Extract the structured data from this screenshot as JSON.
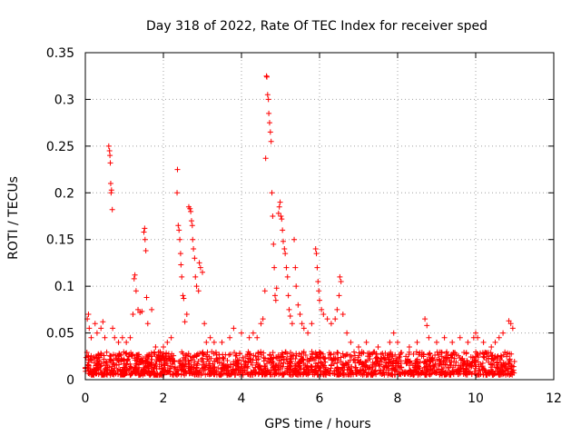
{
  "chart_data": {
    "type": "scatter",
    "title": "Day 318 of 2022, Rate Of TEC Index for receiver sped",
    "xlabel": "GPS time / hours",
    "ylabel": "ROTI / TECUs",
    "xlim": [
      0,
      12
    ],
    "ylim": [
      0,
      0.35
    ],
    "xticks": [
      0,
      2,
      4,
      6,
      8,
      10,
      12
    ],
    "xtick_labels": [
      "0",
      "2",
      "4",
      "6",
      "8",
      "10",
      "12"
    ],
    "yticks": [
      0,
      0.05,
      0.1,
      0.15,
      0.2,
      0.25,
      0.3,
      0.35
    ],
    "ytick_labels": [
      "0",
      "0.05",
      "0.1",
      "0.15",
      "0.2",
      "0.25",
      "0.3",
      "0.35"
    ],
    "grid": true,
    "marker": "+",
    "color": "#ff0000",
    "series": [
      {
        "name": "ROTI",
        "background_band": {
          "x_range": [
            0,
            11
          ],
          "y_range": [
            0.005,
            0.03
          ]
        },
        "points": [
          [
            0.05,
            0.065
          ],
          [
            0.08,
            0.07
          ],
          [
            0.1,
            0.055
          ],
          [
            0.15,
            0.045
          ],
          [
            0.25,
            0.06
          ],
          [
            0.3,
            0.05
          ],
          [
            0.4,
            0.055
          ],
          [
            0.45,
            0.062
          ],
          [
            0.5,
            0.045
          ],
          [
            0.6,
            0.25
          ],
          [
            0.62,
            0.245
          ],
          [
            0.63,
            0.24
          ],
          [
            0.64,
            0.232
          ],
          [
            0.65,
            0.21
          ],
          [
            0.66,
            0.2
          ],
          [
            0.67,
            0.203
          ],
          [
            0.69,
            0.182
          ],
          [
            0.7,
            0.055
          ],
          [
            0.75,
            0.045
          ],
          [
            0.85,
            0.04
          ],
          [
            0.95,
            0.045
          ],
          [
            1.05,
            0.04
          ],
          [
            1.15,
            0.045
          ],
          [
            1.22,
            0.07
          ],
          [
            1.25,
            0.108
          ],
          [
            1.27,
            0.112
          ],
          [
            1.3,
            0.095
          ],
          [
            1.35,
            0.075
          ],
          [
            1.4,
            0.072
          ],
          [
            1.45,
            0.073
          ],
          [
            1.5,
            0.158
          ],
          [
            1.52,
            0.162
          ],
          [
            1.53,
            0.15
          ],
          [
            1.55,
            0.138
          ],
          [
            1.57,
            0.088
          ],
          [
            1.6,
            0.06
          ],
          [
            1.7,
            0.075
          ],
          [
            1.8,
            0.035
          ],
          [
            2.0,
            0.035
          ],
          [
            2.1,
            0.04
          ],
          [
            2.2,
            0.045
          ],
          [
            2.35,
            0.2
          ],
          [
            2.36,
            0.225
          ],
          [
            2.38,
            0.165
          ],
          [
            2.4,
            0.16
          ],
          [
            2.42,
            0.15
          ],
          [
            2.44,
            0.135
          ],
          [
            2.45,
            0.123
          ],
          [
            2.47,
            0.11
          ],
          [
            2.5,
            0.09
          ],
          [
            2.52,
            0.087
          ],
          [
            2.55,
            0.062
          ],
          [
            2.6,
            0.07
          ],
          [
            2.65,
            0.185
          ],
          [
            2.68,
            0.183
          ],
          [
            2.7,
            0.18
          ],
          [
            2.72,
            0.17
          ],
          [
            2.74,
            0.165
          ],
          [
            2.75,
            0.15
          ],
          [
            2.77,
            0.14
          ],
          [
            2.8,
            0.13
          ],
          [
            2.82,
            0.11
          ],
          [
            2.85,
            0.1
          ],
          [
            2.9,
            0.095
          ],
          [
            2.92,
            0.125
          ],
          [
            2.95,
            0.12
          ],
          [
            3.0,
            0.115
          ],
          [
            3.05,
            0.06
          ],
          [
            3.1,
            0.04
          ],
          [
            3.2,
            0.045
          ],
          [
            3.3,
            0.04
          ],
          [
            3.5,
            0.04
          ],
          [
            3.7,
            0.045
          ],
          [
            3.8,
            0.055
          ],
          [
            4.0,
            0.05
          ],
          [
            4.2,
            0.045
          ],
          [
            4.3,
            0.05
          ],
          [
            4.4,
            0.045
          ],
          [
            4.5,
            0.06
          ],
          [
            4.55,
            0.065
          ],
          [
            4.6,
            0.095
          ],
          [
            4.62,
            0.237
          ],
          [
            4.64,
            0.325
          ],
          [
            4.65,
            0.324
          ],
          [
            4.67,
            0.305
          ],
          [
            4.69,
            0.3
          ],
          [
            4.7,
            0.285
          ],
          [
            4.72,
            0.275
          ],
          [
            4.74,
            0.265
          ],
          [
            4.76,
            0.255
          ],
          [
            4.78,
            0.2
          ],
          [
            4.8,
            0.175
          ],
          [
            4.82,
            0.145
          ],
          [
            4.84,
            0.12
          ],
          [
            4.86,
            0.09
          ],
          [
            4.88,
            0.085
          ],
          [
            4.9,
            0.098
          ],
          [
            4.95,
            0.178
          ],
          [
            4.97,
            0.185
          ],
          [
            4.99,
            0.19
          ],
          [
            5.01,
            0.175
          ],
          [
            5.03,
            0.172
          ],
          [
            5.05,
            0.16
          ],
          [
            5.07,
            0.148
          ],
          [
            5.1,
            0.14
          ],
          [
            5.12,
            0.135
          ],
          [
            5.15,
            0.12
          ],
          [
            5.18,
            0.11
          ],
          [
            5.2,
            0.09
          ],
          [
            5.22,
            0.075
          ],
          [
            5.25,
            0.068
          ],
          [
            5.3,
            0.06
          ],
          [
            5.35,
            0.15
          ],
          [
            5.38,
            0.12
          ],
          [
            5.4,
            0.1
          ],
          [
            5.45,
            0.08
          ],
          [
            5.5,
            0.07
          ],
          [
            5.55,
            0.06
          ],
          [
            5.6,
            0.055
          ],
          [
            5.7,
            0.05
          ],
          [
            5.8,
            0.06
          ],
          [
            5.9,
            0.14
          ],
          [
            5.92,
            0.135
          ],
          [
            5.94,
            0.12
          ],
          [
            5.96,
            0.105
          ],
          [
            5.98,
            0.095
          ],
          [
            6.0,
            0.085
          ],
          [
            6.05,
            0.075
          ],
          [
            6.1,
            0.07
          ],
          [
            6.2,
            0.065
          ],
          [
            6.3,
            0.06
          ],
          [
            6.4,
            0.065
          ],
          [
            6.45,
            0.075
          ],
          [
            6.5,
            0.09
          ],
          [
            6.52,
            0.11
          ],
          [
            6.55,
            0.105
          ],
          [
            6.6,
            0.07
          ],
          [
            6.7,
            0.05
          ],
          [
            6.8,
            0.04
          ],
          [
            7.0,
            0.035
          ],
          [
            7.2,
            0.04
          ],
          [
            7.5,
            0.035
          ],
          [
            7.8,
            0.04
          ],
          [
            7.9,
            0.05
          ],
          [
            8.0,
            0.04
          ],
          [
            8.3,
            0.035
          ],
          [
            8.5,
            0.04
          ],
          [
            8.7,
            0.065
          ],
          [
            8.75,
            0.058
          ],
          [
            8.8,
            0.045
          ],
          [
            9.0,
            0.04
          ],
          [
            9.2,
            0.045
          ],
          [
            9.4,
            0.04
          ],
          [
            9.6,
            0.045
          ],
          [
            9.8,
            0.04
          ],
          [
            9.95,
            0.045
          ],
          [
            10.0,
            0.05
          ],
          [
            10.05,
            0.045
          ],
          [
            10.2,
            0.04
          ],
          [
            10.4,
            0.035
          ],
          [
            10.5,
            0.04
          ],
          [
            10.6,
            0.045
          ],
          [
            10.7,
            0.05
          ],
          [
            10.85,
            0.063
          ],
          [
            10.9,
            0.06
          ],
          [
            10.95,
            0.055
          ]
        ]
      }
    ]
  }
}
